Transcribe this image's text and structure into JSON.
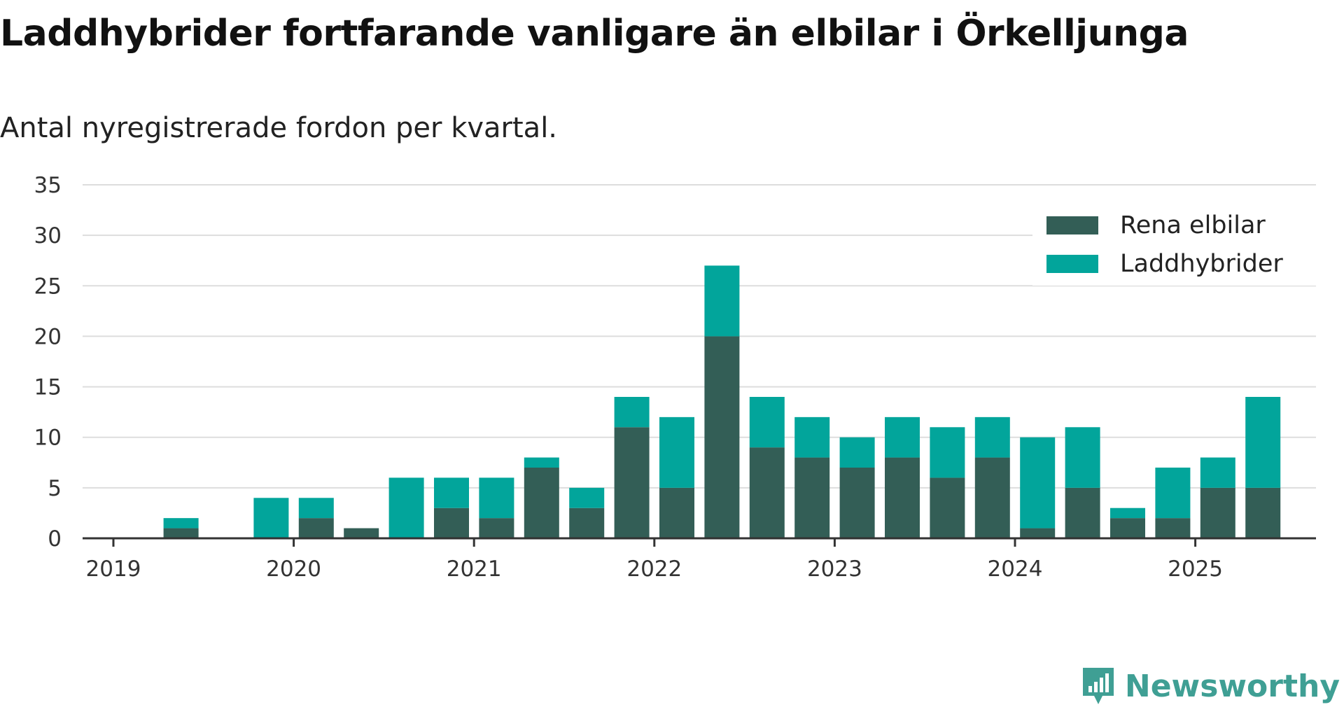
{
  "title": "Laddhybrider fortfarande vanligare än elbilar i Örkelljunga",
  "subtitle": "Antal nyregistrerade fordon per kvartal.",
  "brand": "Newsworthy",
  "colors": {
    "elbilar": "#335e56",
    "laddhybrider": "#02a59b",
    "grid": "#dddddd",
    "axis": "#333333"
  },
  "chart_data": {
    "type": "bar",
    "stacked": true,
    "x_ticks": [
      "2019",
      "2020",
      "2021",
      "2022",
      "2023",
      "2024",
      "2025"
    ],
    "quarters": [
      "2019 Q1",
      "2019 Q2",
      "2019 Q3",
      "2019 Q4",
      "2020 Q1",
      "2020 Q2",
      "2020 Q3",
      "2020 Q4",
      "2021 Q1",
      "2021 Q2",
      "2021 Q3",
      "2021 Q4",
      "2022 Q1",
      "2022 Q2",
      "2022 Q3",
      "2022 Q4",
      "2023 Q1",
      "2023 Q2",
      "2023 Q3",
      "2023 Q4",
      "2024 Q1",
      "2024 Q2",
      "2024 Q3",
      "2024 Q4",
      "2025 Q1",
      "2025 Q2"
    ],
    "series": [
      {
        "name": "Rena elbilar",
        "values": [
          0,
          1,
          0,
          0,
          2,
          1,
          0,
          3,
          2,
          7,
          3,
          11,
          5,
          20,
          9,
          8,
          7,
          8,
          6,
          8,
          1,
          5,
          2,
          2,
          5,
          5
        ]
      },
      {
        "name": "Laddhybrider",
        "values": [
          0,
          1,
          0,
          4,
          2,
          0,
          6,
          3,
          4,
          1,
          2,
          3,
          7,
          7,
          5,
          4,
          3,
          4,
          5,
          4,
          9,
          6,
          1,
          5,
          3,
          9
        ]
      }
    ],
    "yticks": [
      0,
      5,
      10,
      15,
      20,
      25,
      30,
      35
    ],
    "ylim": [
      0,
      35
    ],
    "grid": true,
    "legend_position": "top-right"
  }
}
